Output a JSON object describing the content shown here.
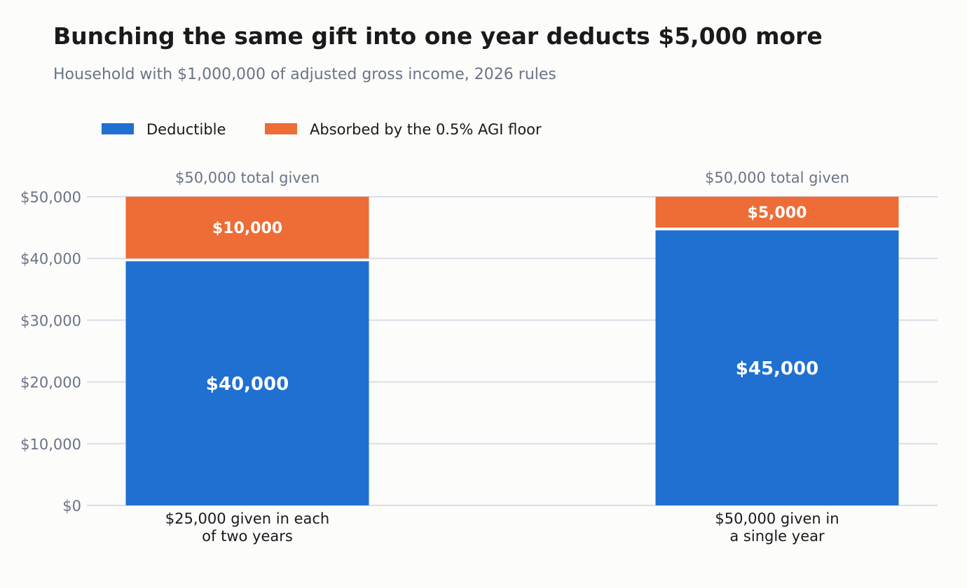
{
  "chart_data": {
    "type": "bar",
    "stacked": true,
    "title": "Bunching the same gift into one year deducts $5,000 more",
    "subtitle": "Household with $1,000,000 of adjusted gross income, 2026 rules",
    "categories": [
      "$25,000 given in each of two years",
      "$50,000 given in a single year"
    ],
    "category_label_lines": [
      [
        "$25,000 given in each",
        "of two years"
      ],
      [
        "$50,000 given in",
        "a single year"
      ]
    ],
    "series": [
      {
        "name": "Deductible",
        "values": [
          40000,
          45000
        ],
        "color": "#1f70d0",
        "labels": [
          "$40,000",
          "$45,000"
        ]
      },
      {
        "name": "Absorbed by the 0.5% AGI floor",
        "values": [
          10000,
          5000
        ],
        "color": "#ee6c36",
        "labels": [
          "$10,000",
          "$5,000"
        ]
      }
    ],
    "total_labels": [
      "$50,000 total given",
      "$50,000 total given"
    ],
    "ylim": [
      0,
      50000
    ],
    "yticks": [
      0,
      10000,
      20000,
      30000,
      40000,
      50000
    ],
    "ytick_labels": [
      "$0",
      "$10,000",
      "$20,000",
      "$30,000",
      "$40,000",
      "$50,000"
    ],
    "xlabel": "",
    "ylabel": "",
    "grid": true,
    "legend_position": "top-left"
  }
}
